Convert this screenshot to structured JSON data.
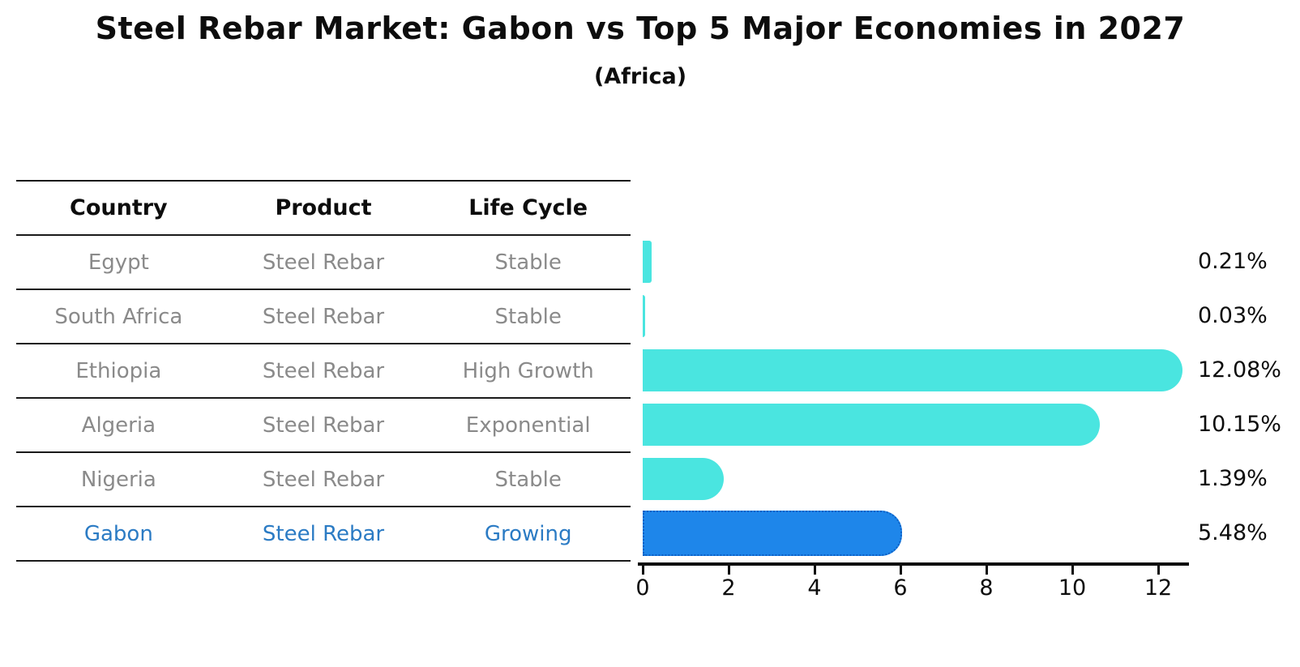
{
  "title": "Steel Rebar Market: Gabon vs Top 5 Major Economies in 2027",
  "subtitle": "(Africa)",
  "table": {
    "headers": [
      "Country",
      "Product",
      "Life Cycle"
    ],
    "rows": [
      {
        "country": "Egypt",
        "product": "Steel Rebar",
        "life_cycle": "Stable",
        "value": 0.21,
        "label": "0.21%",
        "highlight": false
      },
      {
        "country": "South Africa",
        "product": "Steel Rebar",
        "life_cycle": "Stable",
        "value": 0.03,
        "label": "0.03%",
        "highlight": false
      },
      {
        "country": "Ethiopia",
        "product": "Steel Rebar",
        "life_cycle": "High Growth",
        "value": 12.08,
        "label": "12.08%",
        "highlight": false
      },
      {
        "country": "Algeria",
        "product": "Steel Rebar",
        "life_cycle": "Exponential",
        "value": 10.15,
        "label": "10.15%",
        "highlight": false
      },
      {
        "country": "Nigeria",
        "product": "Steel Rebar",
        "life_cycle": "Stable",
        "value": 1.39,
        "label": "1.39%",
        "highlight": false
      },
      {
        "country": "Gabon",
        "product": "Steel Rebar",
        "life_cycle": "Growing",
        "value": 5.48,
        "label": "5.48%",
        "highlight": true
      }
    ]
  },
  "chart_data": {
    "type": "bar",
    "orientation": "horizontal",
    "title": "Steel Rebar Market: Gabon vs Top 5 Major Economies in 2027",
    "subtitle": "(Africa)",
    "categories": [
      "Egypt",
      "South Africa",
      "Ethiopia",
      "Algeria",
      "Nigeria",
      "Gabon"
    ],
    "values": [
      0.21,
      0.03,
      12.08,
      10.15,
      1.39,
      5.48
    ],
    "value_labels": [
      "0.21%",
      "0.03%",
      "12.08%",
      "10.15%",
      "1.39%",
      "5.48%"
    ],
    "x_ticks": [
      0,
      2,
      4,
      6,
      8,
      10,
      12
    ],
    "xlim": [
      0,
      12.7
    ],
    "grid": false,
    "legend": false,
    "bar_color": "#4ae5e0",
    "highlight_color": "#1e86ea",
    "highlight_border_color": "#0d5fc4",
    "highlight_index": 5
  },
  "colors": {
    "background": "#ffffff",
    "text": "#0d0d0d",
    "muted_text": "#8a8a8a",
    "highlight_text": "#2b7bc4",
    "line": "#1a1a1a"
  }
}
